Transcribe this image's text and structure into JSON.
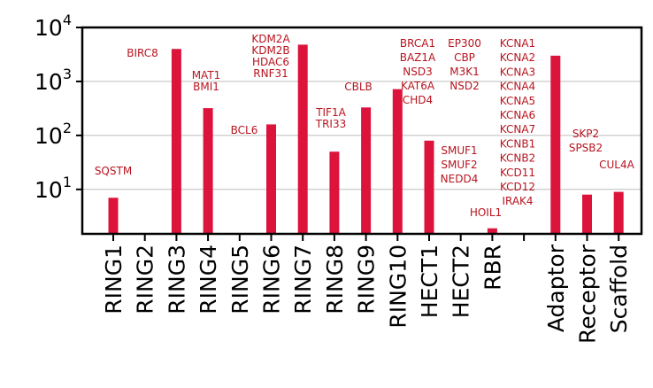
{
  "chart_data": {
    "type": "bar",
    "title": "",
    "xlabel": "",
    "ylabel": "",
    "yscale": "log",
    "ylim": [
      1.5,
      10000
    ],
    "grid": "horizontal",
    "bar_color": "#dc143c",
    "annotation_color": "#b8141f",
    "y_ticks": [
      {
        "value": 10,
        "base": "10",
        "exp": "1"
      },
      {
        "value": 100,
        "base": "10",
        "exp": "2"
      },
      {
        "value": 1000,
        "base": "10",
        "exp": "3"
      },
      {
        "value": 10000,
        "base": "10",
        "exp": "4"
      }
    ],
    "categories": [
      "RING1",
      "RING2",
      "RING3",
      "RING4",
      "RING5",
      "RING6",
      "RING7",
      "RING8",
      "RING9",
      "RING10",
      "HECT1",
      "HECT2",
      "RBR",
      "",
      "Adaptor",
      "Receptor",
      "Scaffold"
    ],
    "values": [
      7,
      null,
      4000,
      320,
      null,
      160,
      4800,
      50,
      330,
      720,
      80,
      null,
      1.9,
      null,
      3000,
      8,
      9
    ],
    "annotations": [
      {
        "category": 0,
        "lines": [
          "SQSTM"
        ]
      },
      {
        "category": 1,
        "lines": [
          "BIRC8"
        ]
      },
      {
        "category": 3,
        "lines": [
          "MAT1",
          "BMI1"
        ]
      },
      {
        "category": 5,
        "lines": [
          "BCL6"
        ]
      },
      {
        "category": 6,
        "lines": [
          "KDM2A",
          "KDM2B",
          "HDAC6",
          "RNF31"
        ]
      },
      {
        "category": 7,
        "lines": [
          "TIF1A",
          "TRI33"
        ]
      },
      {
        "category": 8,
        "lines": [
          "CBLB"
        ]
      },
      {
        "category": 10,
        "lines": [
          "BRCA1",
          "BAZ1A",
          "NSD3",
          "KAT6A",
          "CHD4"
        ]
      },
      {
        "category": 11,
        "lines": [
          "EP300",
          "CBP",
          "M3K1",
          "NSD2"
        ]
      },
      {
        "category": 11,
        "lines": [
          "SMUF1",
          "SMUF2",
          "NEDD4"
        ]
      },
      {
        "category": 12,
        "lines": [
          "HOIL1"
        ]
      },
      {
        "category": 13,
        "lines": [
          "KCNA1",
          "KCNA2",
          "KCNA3",
          "KCNA4",
          "KCNA5",
          "KCNA6",
          "KCNA7",
          "KCNB1",
          "KCNB2",
          "KCD11",
          "KCD12",
          "IRAK4"
        ]
      },
      {
        "category": 15,
        "lines": [
          "SKP2",
          "SPSB2"
        ]
      },
      {
        "category": 16,
        "lines": [
          "CUL4A"
        ]
      }
    ]
  }
}
